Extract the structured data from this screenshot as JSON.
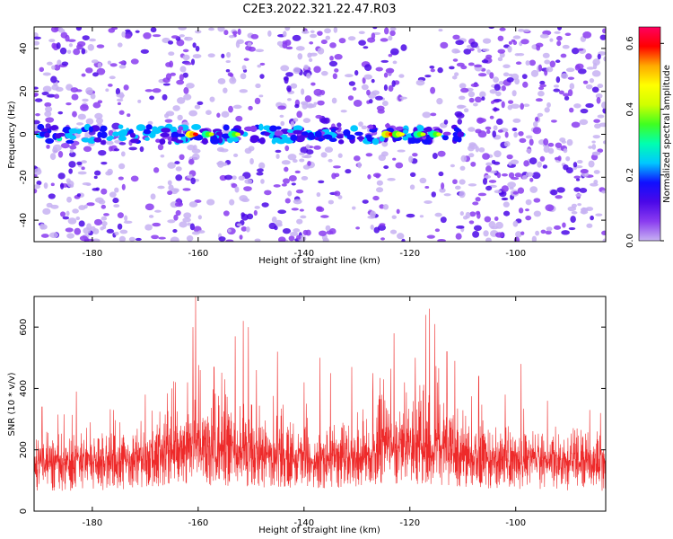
{
  "title": "C2E3.2022.321.22.47.R03",
  "colors": {
    "snr_line": "#ee2a2a",
    "axis": "#000000",
    "colormap": [
      "#ffffff",
      "#c7b2f2",
      "#8a3cf0",
      "#4b08e8",
      "#1010ff",
      "#00c8ff",
      "#00ffb0",
      "#40ff20",
      "#d0ff00",
      "#ffff00",
      "#ffaa00",
      "#ff0000",
      "#ff0060"
    ]
  },
  "chart_data": [
    {
      "type": "heatmap",
      "title": "C2E3.2022.321.22.47.R03",
      "xlabel": "Height of straight line (km)",
      "ylabel": "Frequency (Hz)",
      "xlim": [
        -191,
        -83
      ],
      "ylim": [
        -50,
        50
      ],
      "x_ticks": [
        -180,
        -160,
        -140,
        -120,
        -100
      ],
      "x_tick_labels": [
        "-180",
        "-160",
        "-140",
        "-120",
        "-100"
      ],
      "y_ticks": [
        -40,
        -20,
        0,
        20,
        40
      ],
      "y_tick_labels": [
        "-40",
        "-20",
        "0",
        "20",
        "40"
      ],
      "colorbar": {
        "label": "Normalized spectral amplitude",
        "range": [
          0.0,
          0.65
        ],
        "ticks": [
          0.0,
          0.2,
          0.4,
          0.6
        ],
        "tick_labels": [
          "0.0",
          "0.2",
          "0.4",
          "0.6"
        ]
      },
      "signal_band": {
        "frequency_hz": 0,
        "x_start_km": -190,
        "x_end_km": -110,
        "hotspots": [
          {
            "x_km": -161,
            "amplitude": 0.62
          },
          {
            "x_km": -158,
            "amplitude": 0.45
          },
          {
            "x_km": -153,
            "amplitude": 0.45
          },
          {
            "x_km": -124,
            "amplitude": 0.58
          },
          {
            "x_km": -122,
            "amplitude": 0.5
          },
          {
            "x_km": -118,
            "amplitude": 0.45
          },
          {
            "x_km": -115,
            "amplitude": 0.42
          }
        ]
      }
    },
    {
      "type": "line",
      "xlabel": "Height of straight line (km)",
      "ylabel": "SNR (10 * v/v)",
      "xlim": [
        -191,
        -83
      ],
      "ylim": [
        0,
        700
      ],
      "x_ticks": [
        -180,
        -160,
        -140,
        -120,
        -100
      ],
      "x_tick_labels": [
        "-180",
        "-160",
        "-140",
        "-120",
        "-100"
      ],
      "y_ticks": [
        0,
        200,
        400,
        600
      ],
      "y_tick_labels": [
        "0",
        "200",
        "400",
        "600"
      ],
      "envelope": [
        {
          "x": -191,
          "base": 130,
          "upper": 260
        },
        {
          "x": -185,
          "base": 130,
          "upper": 290
        },
        {
          "x": -178,
          "base": 135,
          "upper": 300
        },
        {
          "x": -172,
          "base": 145,
          "upper": 330
        },
        {
          "x": -166,
          "base": 160,
          "upper": 360
        },
        {
          "x": -161,
          "base": 170,
          "upper": 450
        },
        {
          "x": -156,
          "base": 165,
          "upper": 420
        },
        {
          "x": -151,
          "base": 160,
          "upper": 410
        },
        {
          "x": -146,
          "base": 150,
          "upper": 340
        },
        {
          "x": -140,
          "base": 145,
          "upper": 320
        },
        {
          "x": -134,
          "base": 145,
          "upper": 300
        },
        {
          "x": -128,
          "base": 150,
          "upper": 320
        },
        {
          "x": -125,
          "base": 175,
          "upper": 430
        },
        {
          "x": -120,
          "base": 175,
          "upper": 420
        },
        {
          "x": -116,
          "base": 175,
          "upper": 450
        },
        {
          "x": -112,
          "base": 160,
          "upper": 400
        },
        {
          "x": -108,
          "base": 150,
          "upper": 330
        },
        {
          "x": -100,
          "base": 140,
          "upper": 300
        },
        {
          "x": -92,
          "base": 135,
          "upper": 290
        },
        {
          "x": -83,
          "base": 130,
          "upper": 280
        }
      ],
      "peaks": [
        {
          "x": -189.5,
          "y": 340
        },
        {
          "x": -183,
          "y": 390
        },
        {
          "x": -176,
          "y": 330
        },
        {
          "x": -170,
          "y": 380
        },
        {
          "x": -165,
          "y": 400
        },
        {
          "x": -162,
          "y": 420
        },
        {
          "x": -161,
          "y": 600
        },
        {
          "x": -160.5,
          "y": 700
        },
        {
          "x": -159.6,
          "y": 460
        },
        {
          "x": -157,
          "y": 470
        },
        {
          "x": -155,
          "y": 430
        },
        {
          "x": -153,
          "y": 570
        },
        {
          "x": -151.5,
          "y": 620
        },
        {
          "x": -150.5,
          "y": 600
        },
        {
          "x": -149,
          "y": 460
        },
        {
          "x": -145,
          "y": 520
        },
        {
          "x": -140,
          "y": 420
        },
        {
          "x": -137,
          "y": 500
        },
        {
          "x": -135,
          "y": 450
        },
        {
          "x": -131,
          "y": 470
        },
        {
          "x": -127,
          "y": 450
        },
        {
          "x": -125,
          "y": 430
        },
        {
          "x": -123,
          "y": 580
        },
        {
          "x": -121,
          "y": 420
        },
        {
          "x": -119,
          "y": 500
        },
        {
          "x": -117,
          "y": 640
        },
        {
          "x": -116.3,
          "y": 660
        },
        {
          "x": -115.3,
          "y": 610
        },
        {
          "x": -113,
          "y": 520
        },
        {
          "x": -111.5,
          "y": 490
        },
        {
          "x": -107,
          "y": 440
        },
        {
          "x": -102,
          "y": 380
        },
        {
          "x": -99,
          "y": 480
        },
        {
          "x": -94,
          "y": 360
        },
        {
          "x": -86,
          "y": 330
        },
        {
          "x": -84,
          "y": 320
        }
      ]
    }
  ]
}
